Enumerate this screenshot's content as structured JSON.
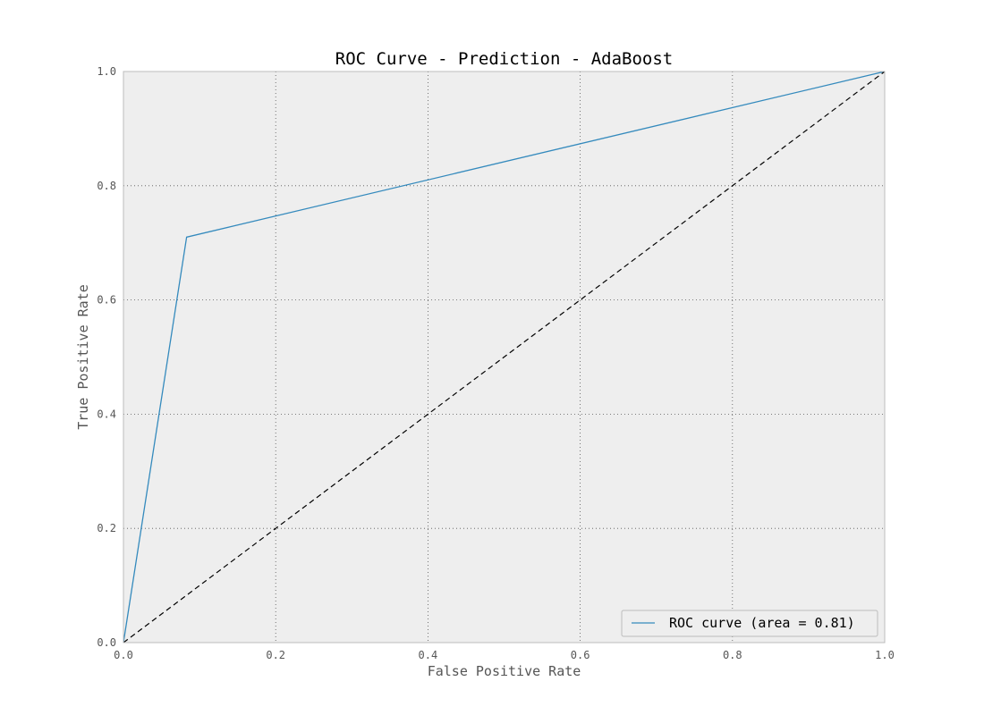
{
  "chart_data": {
    "type": "line",
    "title": "ROC Curve - Prediction - AdaBoost",
    "xlabel": "False Positive Rate",
    "ylabel": "True Positive Rate",
    "xlim": [
      0.0,
      1.0
    ],
    "ylim": [
      0.0,
      1.0
    ],
    "x_ticks": [
      "0.0",
      "0.2",
      "0.4",
      "0.6",
      "0.8",
      "1.0"
    ],
    "y_ticks": [
      "0.0",
      "0.2",
      "0.4",
      "0.6",
      "0.8",
      "1.0"
    ],
    "grid": true,
    "legend_position": "lower-right",
    "series": [
      {
        "name": "ROC curve (area = 0.81)",
        "color": "#348ABD",
        "style": "solid",
        "x": [
          0.0,
          0.083,
          1.0
        ],
        "y": [
          0.0,
          0.71,
          1.0
        ]
      },
      {
        "color": "#000000",
        "style": "dashed",
        "x": [
          0.0,
          1.0
        ],
        "y": [
          0.0,
          1.0
        ]
      }
    ],
    "colors": {
      "plot_background": "#EEEEEE",
      "frame": "#BCBCBC",
      "grid": "#555555"
    }
  }
}
